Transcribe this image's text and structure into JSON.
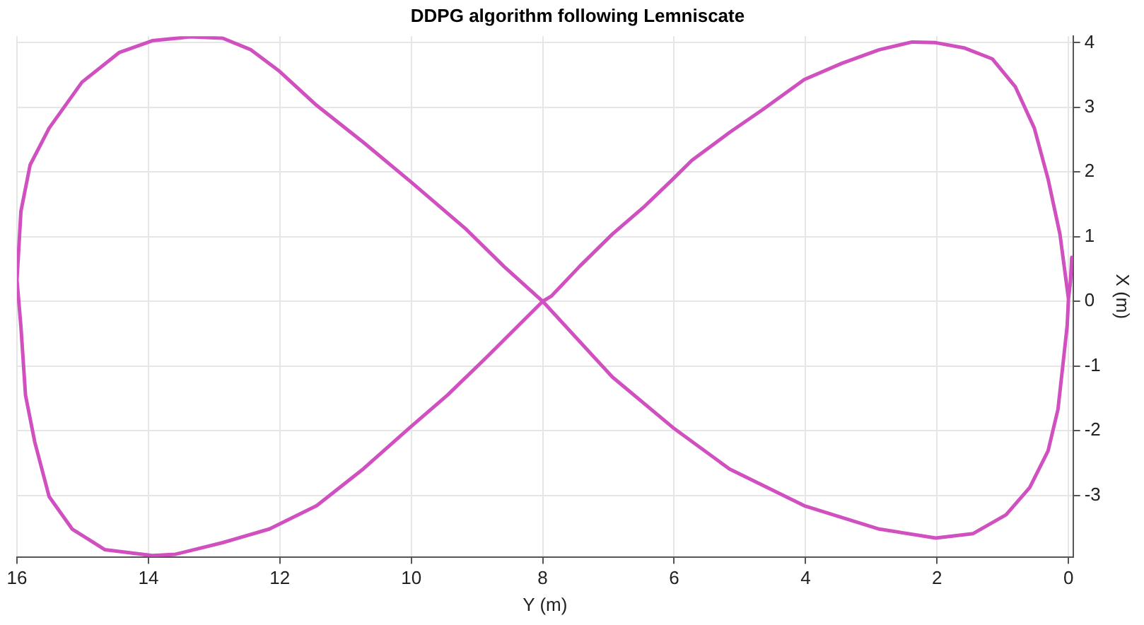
{
  "chart_data": {
    "type": "line",
    "title": "DDPG algorithm following Lemniscate",
    "xlabel": "Y (m)",
    "ylabel": "X (m)",
    "x": [
      -0.05,
      -0.03,
      0.0,
      0.13,
      0.31,
      0.52,
      0.81,
      1.16,
      1.59,
      2.02,
      2.38,
      2.88,
      3.45,
      4.02,
      4.66,
      5.16,
      5.73,
      6.02,
      6.45,
      6.94,
      7.44,
      7.87,
      8.0,
      8.87,
      9.45,
      10.02,
      10.73,
      11.44,
      12.16,
      12.87,
      13.59,
      13.94,
      14.66,
      15.16,
      15.51,
      15.73,
      15.87,
      15.94,
      16.0,
      15.94,
      15.8,
      15.51,
      15.01,
      14.44,
      13.94,
      13.37,
      12.87,
      12.44,
      12.02,
      11.44,
      10.73,
      10.02,
      9.16,
      8.59,
      8.0,
      6.94,
      6.02,
      5.16,
      4.02,
      2.88,
      2.02,
      1.45,
      0.95,
      0.59,
      0.31,
      0.16,
      0.09,
      0.02,
      0.0
    ],
    "series": [
      {
        "color": "#d050c0",
        "values": [
          0.68,
          0.3,
          0.04,
          1.04,
          1.89,
          2.68,
          3.32,
          3.75,
          3.92,
          4.0,
          4.01,
          3.89,
          3.68,
          3.43,
          2.96,
          2.61,
          2.18,
          1.89,
          1.47,
          1.04,
          0.54,
          0.08,
          0.0,
          -0.88,
          -1.45,
          -1.95,
          -2.59,
          -3.16,
          -3.52,
          -3.73,
          -3.91,
          -3.93,
          -3.84,
          -3.52,
          -3.02,
          -2.17,
          -1.45,
          -0.39,
          0.33,
          1.39,
          2.11,
          2.68,
          3.39,
          3.85,
          4.03,
          4.09,
          4.07,
          3.89,
          3.57,
          3.03,
          2.46,
          1.86,
          1.11,
          0.54,
          0.0,
          -1.17,
          -1.95,
          -2.59,
          -3.16,
          -3.52,
          -3.66,
          -3.59,
          -3.3,
          -2.88,
          -2.31,
          -1.67,
          -1.03,
          -0.38,
          0.04
        ]
      }
    ],
    "xlim": [
      16,
      -0.07
    ],
    "xticks": [
      0,
      2,
      4,
      6,
      8,
      10,
      12,
      14,
      16
    ],
    "ylim": [
      -3.95,
      4.1
    ],
    "yticks": [
      -3,
      -2,
      -1,
      0,
      1,
      2,
      3,
      4
    ],
    "grid": true,
    "line_style": "solid",
    "marker": "none",
    "legend": false
  }
}
